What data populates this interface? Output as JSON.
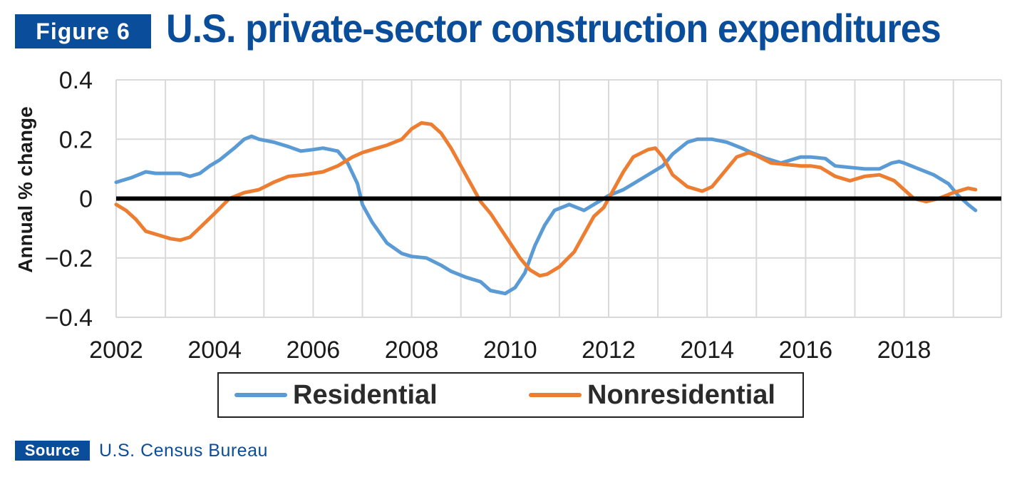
{
  "figure": {
    "badge": "Figure 6",
    "title": "U.S. private-sector construction expenditures"
  },
  "source": {
    "badge": "Source",
    "text": "U.S. Census Bureau"
  },
  "colors": {
    "brand": "#0a4d9a",
    "residential": "#5b9bd5",
    "nonresidential": "#ed7d31",
    "zero_line": "#000000",
    "grid": "#d9d9d9"
  },
  "chart_data": {
    "type": "line",
    "title": "",
    "xlabel": "",
    "ylabel": "Annual % change",
    "xlim": [
      2002,
      2020
    ],
    "ylim": [
      -0.4,
      0.4
    ],
    "x_ticks": [
      "2002",
      "2004",
      "2006",
      "2008",
      "2010",
      "2012",
      "2014",
      "2016",
      "2018"
    ],
    "y_ticks": [
      "0.4",
      "0.2",
      "0",
      "−0.2",
      "−0.4"
    ],
    "grid": true,
    "legend_position": "bottom",
    "series": [
      {
        "name": "Residential",
        "color": "#5b9bd5",
        "points": [
          [
            2002.0,
            0.055
          ],
          [
            2002.3,
            0.07
          ],
          [
            2002.6,
            0.09
          ],
          [
            2002.8,
            0.085
          ],
          [
            2003.0,
            0.085
          ],
          [
            2003.3,
            0.085
          ],
          [
            2003.5,
            0.075
          ],
          [
            2003.7,
            0.085
          ],
          [
            2003.9,
            0.11
          ],
          [
            2004.1,
            0.13
          ],
          [
            2004.4,
            0.17
          ],
          [
            2004.6,
            0.2
          ],
          [
            2004.75,
            0.21
          ],
          [
            2004.9,
            0.2
          ],
          [
            2005.2,
            0.19
          ],
          [
            2005.5,
            0.175
          ],
          [
            2005.75,
            0.16
          ],
          [
            2006.0,
            0.165
          ],
          [
            2006.2,
            0.17
          ],
          [
            2006.5,
            0.16
          ],
          [
            2006.7,
            0.12
          ],
          [
            2006.9,
            0.05
          ],
          [
            2007.0,
            -0.02
          ],
          [
            2007.2,
            -0.08
          ],
          [
            2007.5,
            -0.15
          ],
          [
            2007.8,
            -0.185
          ],
          [
            2008.0,
            -0.195
          ],
          [
            2008.3,
            -0.2
          ],
          [
            2008.6,
            -0.225
          ],
          [
            2008.8,
            -0.245
          ],
          [
            2009.1,
            -0.265
          ],
          [
            2009.4,
            -0.28
          ],
          [
            2009.6,
            -0.31
          ],
          [
            2009.9,
            -0.32
          ],
          [
            2010.1,
            -0.3
          ],
          [
            2010.3,
            -0.25
          ],
          [
            2010.5,
            -0.16
          ],
          [
            2010.7,
            -0.09
          ],
          [
            2010.9,
            -0.04
          ],
          [
            2011.2,
            -0.02
          ],
          [
            2011.5,
            -0.04
          ],
          [
            2011.8,
            -0.01
          ],
          [
            2012.0,
            0.01
          ],
          [
            2012.3,
            0.03
          ],
          [
            2012.6,
            0.06
          ],
          [
            2012.9,
            0.09
          ],
          [
            2013.1,
            0.11
          ],
          [
            2013.3,
            0.15
          ],
          [
            2013.6,
            0.19
          ],
          [
            2013.8,
            0.2
          ],
          [
            2014.1,
            0.2
          ],
          [
            2014.4,
            0.19
          ],
          [
            2014.7,
            0.17
          ],
          [
            2014.9,
            0.155
          ],
          [
            2015.2,
            0.135
          ],
          [
            2015.5,
            0.12
          ],
          [
            2015.7,
            0.13
          ],
          [
            2015.9,
            0.14
          ],
          [
            2016.1,
            0.14
          ],
          [
            2016.4,
            0.135
          ],
          [
            2016.6,
            0.11
          ],
          [
            2016.9,
            0.105
          ],
          [
            2017.2,
            0.1
          ],
          [
            2017.5,
            0.1
          ],
          [
            2017.75,
            0.12
          ],
          [
            2017.9,
            0.125
          ],
          [
            2018.0,
            0.12
          ],
          [
            2018.3,
            0.1
          ],
          [
            2018.6,
            0.08
          ],
          [
            2018.9,
            0.05
          ],
          [
            2019.1,
            0.01
          ],
          [
            2019.3,
            -0.02
          ],
          [
            2019.45,
            -0.04
          ]
        ]
      },
      {
        "name": "Nonresidential",
        "color": "#ed7d31",
        "points": [
          [
            2002.0,
            -0.02
          ],
          [
            2002.2,
            -0.04
          ],
          [
            2002.4,
            -0.07
          ],
          [
            2002.6,
            -0.11
          ],
          [
            2002.9,
            -0.125
          ],
          [
            2003.1,
            -0.135
          ],
          [
            2003.3,
            -0.14
          ],
          [
            2003.5,
            -0.13
          ],
          [
            2003.75,
            -0.09
          ],
          [
            2004.0,
            -0.05
          ],
          [
            2004.3,
            0.0
          ],
          [
            2004.6,
            0.02
          ],
          [
            2004.9,
            0.03
          ],
          [
            2005.2,
            0.055
          ],
          [
            2005.5,
            0.075
          ],
          [
            2005.8,
            0.08
          ],
          [
            2006.0,
            0.085
          ],
          [
            2006.2,
            0.09
          ],
          [
            2006.5,
            0.11
          ],
          [
            2006.8,
            0.14
          ],
          [
            2007.0,
            0.155
          ],
          [
            2007.3,
            0.17
          ],
          [
            2007.5,
            0.18
          ],
          [
            2007.8,
            0.2
          ],
          [
            2008.0,
            0.235
          ],
          [
            2008.2,
            0.255
          ],
          [
            2008.4,
            0.25
          ],
          [
            2008.6,
            0.22
          ],
          [
            2008.8,
            0.17
          ],
          [
            2009.0,
            0.11
          ],
          [
            2009.2,
            0.05
          ],
          [
            2009.4,
            -0.01
          ],
          [
            2009.6,
            -0.05
          ],
          [
            2009.8,
            -0.1
          ],
          [
            2010.0,
            -0.15
          ],
          [
            2010.2,
            -0.2
          ],
          [
            2010.4,
            -0.24
          ],
          [
            2010.6,
            -0.26
          ],
          [
            2010.75,
            -0.255
          ],
          [
            2011.0,
            -0.23
          ],
          [
            2011.3,
            -0.18
          ],
          [
            2011.5,
            -0.12
          ],
          [
            2011.7,
            -0.06
          ],
          [
            2011.9,
            -0.03
          ],
          [
            2012.1,
            0.03
          ],
          [
            2012.3,
            0.09
          ],
          [
            2012.5,
            0.14
          ],
          [
            2012.8,
            0.165
          ],
          [
            2012.95,
            0.17
          ],
          [
            2013.1,
            0.14
          ],
          [
            2013.3,
            0.08
          ],
          [
            2013.6,
            0.04
          ],
          [
            2013.9,
            0.025
          ],
          [
            2014.1,
            0.04
          ],
          [
            2014.4,
            0.1
          ],
          [
            2014.6,
            0.14
          ],
          [
            2014.85,
            0.155
          ],
          [
            2015.0,
            0.145
          ],
          [
            2015.3,
            0.12
          ],
          [
            2015.6,
            0.115
          ],
          [
            2015.9,
            0.11
          ],
          [
            2016.1,
            0.11
          ],
          [
            2016.3,
            0.105
          ],
          [
            2016.6,
            0.075
          ],
          [
            2016.9,
            0.06
          ],
          [
            2017.2,
            0.075
          ],
          [
            2017.5,
            0.08
          ],
          [
            2017.8,
            0.06
          ],
          [
            2018.0,
            0.03
          ],
          [
            2018.2,
            0.0
          ],
          [
            2018.45,
            -0.01
          ],
          [
            2018.7,
            0.0
          ],
          [
            2019.0,
            0.02
          ],
          [
            2019.3,
            0.035
          ],
          [
            2019.45,
            0.03
          ]
        ]
      }
    ]
  }
}
